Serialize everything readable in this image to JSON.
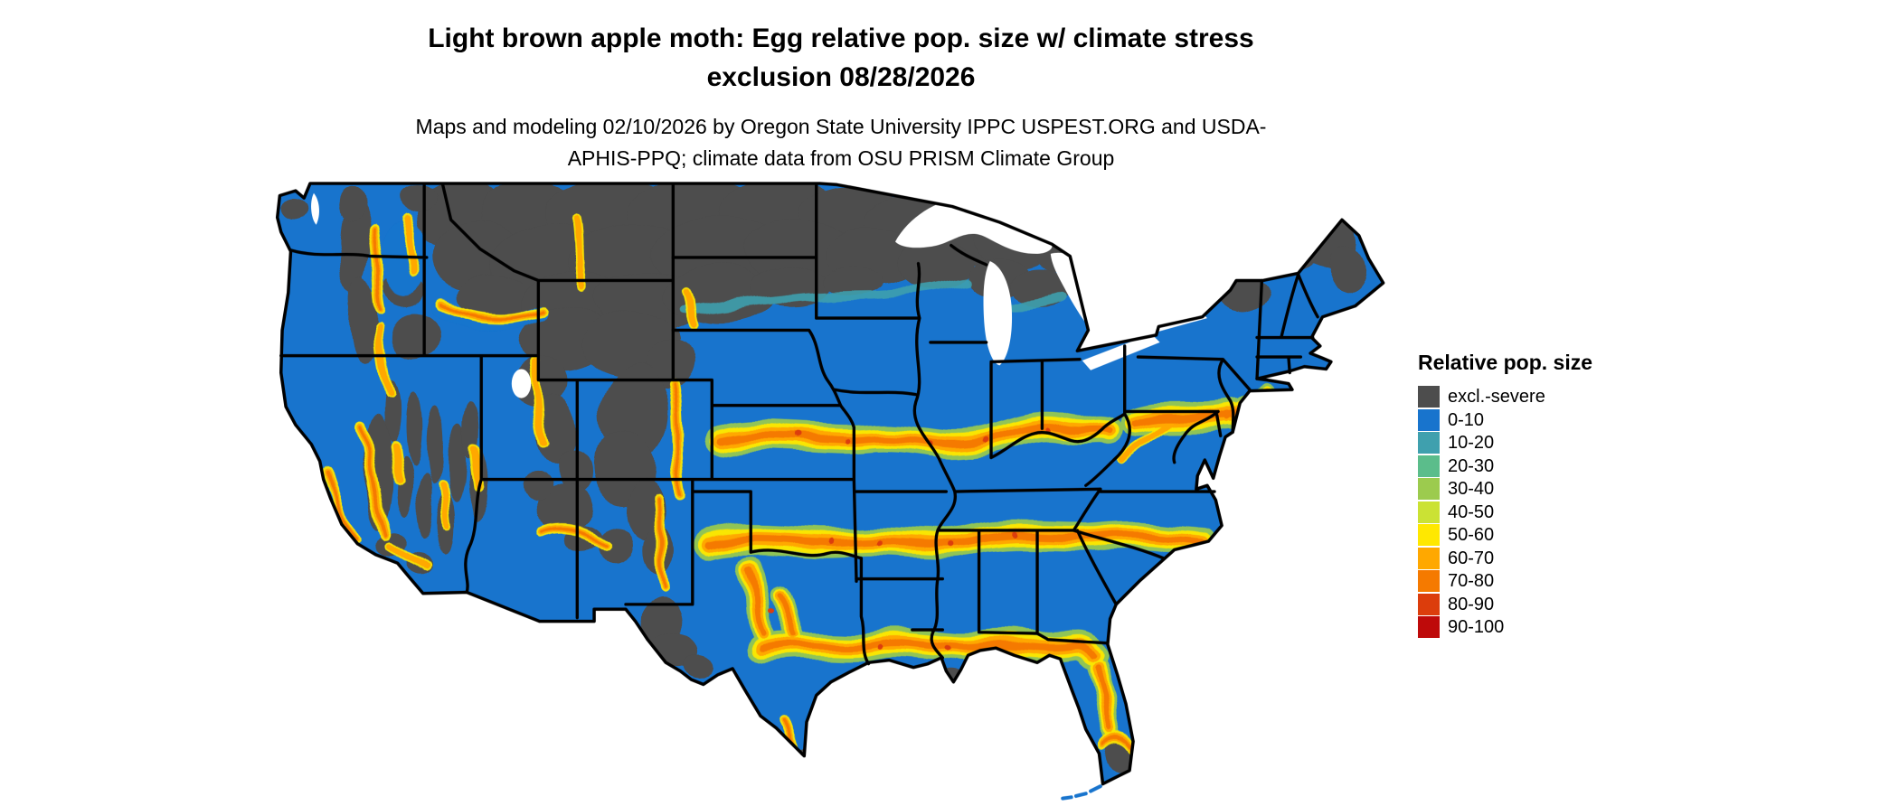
{
  "figure": {
    "title": "Light brown apple moth: Egg relative pop. size w/ climate stress exclusion 08/28/2026",
    "subtitle": "Maps and modeling 02/10/2026 by Oregon State University IPPC USPEST.ORG and USDA-APHIS-PPQ; climate data from OSU PRISM Climate Group"
  },
  "map": {
    "region": "Continental United States",
    "border_color": "#000000",
    "water_color": "#ffffff"
  },
  "legend": {
    "title": "Relative pop. size",
    "items": [
      {
        "label": "excl.-severe",
        "color": "#4D4D4D"
      },
      {
        "label": "0-10",
        "color": "#1874CD"
      },
      {
        "label": "10-20",
        "color": "#3FA0AE"
      },
      {
        "label": "20-30",
        "color": "#5BBD8B"
      },
      {
        "label": "30-40",
        "color": "#9CCB4E"
      },
      {
        "label": "40-50",
        "color": "#CBE234"
      },
      {
        "label": "50-60",
        "color": "#FFE800"
      },
      {
        "label": "60-70",
        "color": "#FFA800"
      },
      {
        "label": "70-80",
        "color": "#F57A00"
      },
      {
        "label": "80-90",
        "color": "#DC3D0C"
      },
      {
        "label": "90-100",
        "color": "#BE0A0A"
      }
    ]
  }
}
